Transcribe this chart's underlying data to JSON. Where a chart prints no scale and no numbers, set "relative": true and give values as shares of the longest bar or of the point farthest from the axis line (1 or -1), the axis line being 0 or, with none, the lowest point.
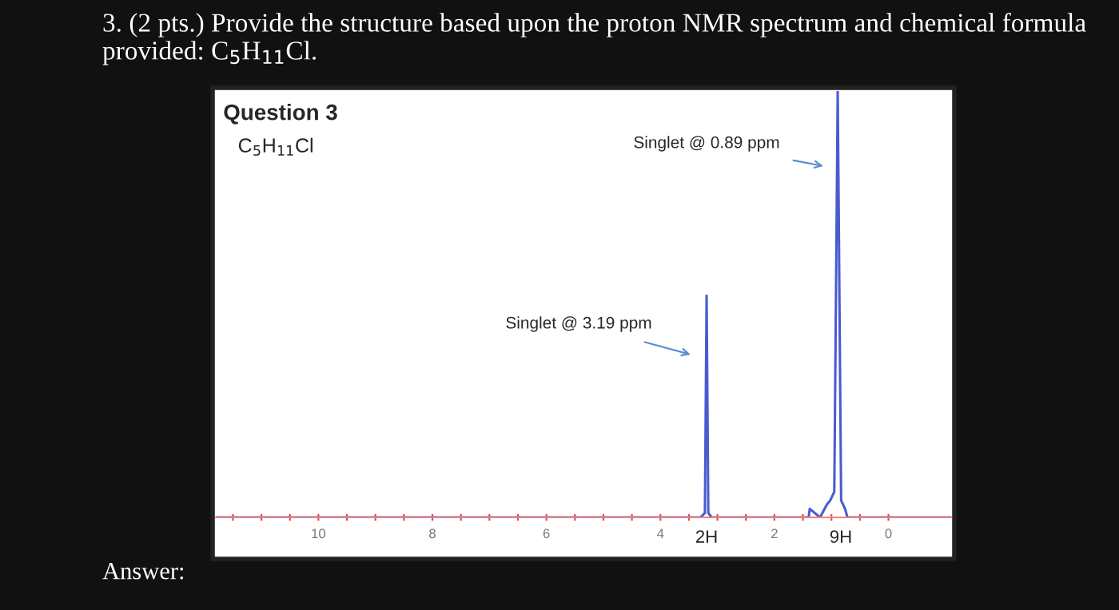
{
  "chart_data": {
    "type": "line",
    "title": "Question 3",
    "subtitle": "C$_{5}$H$_{11}$Cl",
    "relative": true,
    "grid": false,
    "xlim": [
      11.8,
      -1.1
    ],
    "xticks": [
      {
        "value": 11.5,
        "label": null
      },
      {
        "value": 11,
        "label": null
      },
      {
        "value": 10.5,
        "label": null
      },
      10,
      {
        "value": 9.5,
        "label": null
      },
      {
        "value": 9,
        "label": null
      },
      {
        "value": 8.5,
        "label": null
      },
      8,
      {
        "value": 7.5,
        "label": null
      },
      {
        "value": 7,
        "label": null
      },
      {
        "value": 6.5,
        "label": null
      },
      6,
      {
        "value": 5.5,
        "label": null
      },
      {
        "value": 5,
        "label": null
      },
      {
        "value": 4.5,
        "label": null
      },
      4,
      {
        "value": 3.5,
        "label": null
      },
      {
        "value": 3,
        "label": null
      },
      {
        "value": 2.5,
        "label": null
      },
      2,
      {
        "value": 1.5,
        "label": null
      },
      {
        "value": 1,
        "label": null
      },
      {
        "value": 0.5,
        "label": null
      },
      0
    ],
    "series": [
      {
        "color": "#4a5bd0",
        "x": [
          11.8,
          3.3,
          3.22,
          3.19,
          3.16,
          3.1,
          1.4,
          1.38,
          1.2,
          1.12,
          1.08,
          1.02,
          0.95,
          0.89,
          0.83,
          0.76,
          0.72,
          -1.1
        ],
        "values": [
          0,
          0,
          0.01,
          0.52,
          0.01,
          0,
          0,
          0.02,
          0,
          0.02,
          0.03,
          0.04,
          0.06,
          1,
          0.04,
          0.02,
          0,
          0
        ]
      }
    ],
    "annotations": [
      "3. (2 pts.) Provide the structure based upon the proton NMR spectrum and chemical formula provided: C$_{5}$H$_{11}$Cl.",
      "Singlet @ 3.19 ppm",
      "Singlet @ 0.89 ppm",
      "2H",
      "9H",
      "Answer:"
    ]
  }
}
